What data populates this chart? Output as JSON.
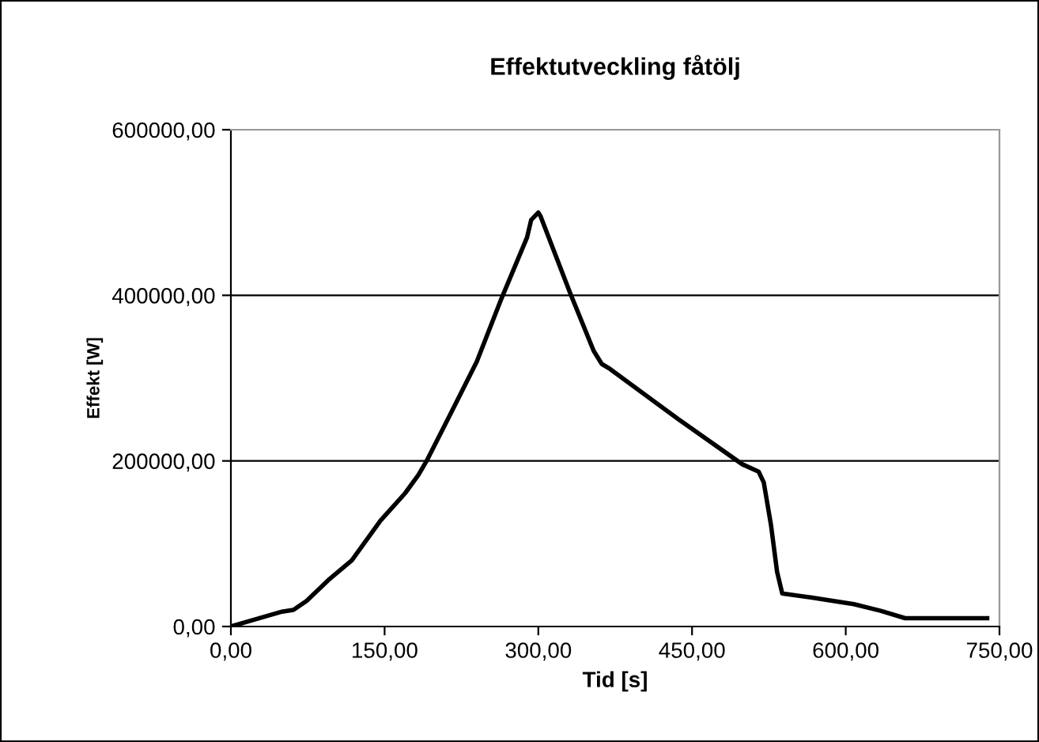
{
  "chart_data": {
    "type": "line",
    "title": "Effektutveckling fåtölj",
    "xlabel": "Tid [s]",
    "ylabel": "Effekt [W]",
    "x": [
      0,
      22,
      50,
      61,
      74,
      95,
      118,
      146,
      170,
      183,
      191,
      214,
      240,
      263,
      289,
      293,
      300,
      302,
      331,
      354,
      362,
      370,
      437,
      499,
      515,
      520,
      527,
      533,
      538,
      566,
      608,
      634,
      658,
      738
    ],
    "series": [
      {
        "color": "#000000",
        "values": [
          0,
          8000,
          18000,
          20000,
          31000,
          56000,
          80000,
          128000,
          161000,
          183000,
          200000,
          256000,
          320000,
          393000,
          470000,
          491000,
          500000,
          496000,
          403000,
          333000,
          317000,
          311000,
          250000,
          196000,
          187000,
          174000,
          123000,
          66000,
          40000,
          35000,
          27000,
          19000,
          10000,
          10000
        ]
      }
    ],
    "xlim": [
      0,
      750
    ],
    "ylim": [
      0,
      600000
    ],
    "xticks": [
      {
        "value": 0,
        "label": "0,00"
      },
      {
        "value": 150,
        "label": "150,00"
      },
      {
        "value": 300,
        "label": "300,00"
      },
      {
        "value": 450,
        "label": "450,00"
      },
      {
        "value": 600,
        "label": "600,00"
      },
      {
        "value": 750,
        "label": "750,00"
      }
    ],
    "yticks": [
      {
        "value": 0,
        "label": "0,00"
      },
      {
        "value": 200000,
        "label": "200000,00"
      },
      {
        "value": 400000,
        "label": "400000,00"
      },
      {
        "value": 600000,
        "label": "600000,00"
      }
    ],
    "grid": "y",
    "legend": false,
    "marker": "none",
    "line_style": "solid"
  }
}
